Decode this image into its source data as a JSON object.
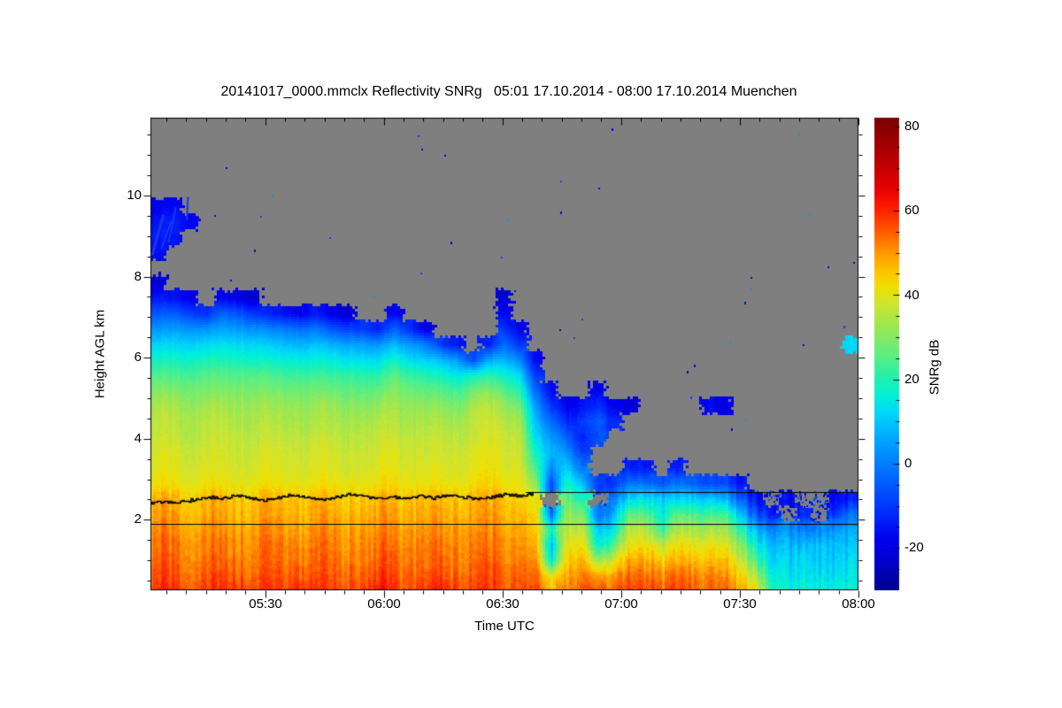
{
  "title": "20141017_0000.mmclx Reflectivity SNRg   05:01 17.10.2014 - 08:00 17.10.2014 Muenchen",
  "chart_data": {
    "type": "heatmap",
    "x_axis": {
      "label": "Time UTC",
      "start": "05:01",
      "end": "08:00",
      "span_minutes": 179,
      "ticks": [
        {
          "label": "05:30",
          "t": 29
        },
        {
          "label": "06:00",
          "t": 59
        },
        {
          "label": "06:30",
          "t": 89
        },
        {
          "label": "07:00",
          "t": 119
        },
        {
          "label": "07:30",
          "t": 149
        },
        {
          "label": "08:00",
          "t": 179
        }
      ],
      "minor_tick_minutes": 5
    },
    "y_axis": {
      "label": "Height AGL km",
      "min_km": 0.26,
      "max_km": 11.92,
      "ticks": [
        {
          "label": "2",
          "km": 2
        },
        {
          "label": "4",
          "km": 4
        },
        {
          "label": "6",
          "km": 6
        },
        {
          "label": "8",
          "km": 8
        },
        {
          "label": "10",
          "km": 10
        }
      ],
      "minor_tick_km": 0.5
    },
    "colorbar": {
      "label": "SNRg dB",
      "min_db": -30,
      "max_db": 82,
      "ticks": [
        {
          "label": "80",
          "db": 80
        },
        {
          "label": "60",
          "db": 60
        },
        {
          "label": "40",
          "db": 40
        },
        {
          "label": "20",
          "db": 20
        },
        {
          "label": "0",
          "db": 0
        },
        {
          "label": "-20",
          "db": -20
        }
      ],
      "minor_tick_db": 5,
      "colormap": [
        [
          -30,
          "#000089"
        ],
        [
          -24,
          "#0000c8"
        ],
        [
          -18,
          "#0000f0"
        ],
        [
          -10,
          "#0038ff"
        ],
        [
          -2,
          "#0070ff"
        ],
        [
          6,
          "#00a8ff"
        ],
        [
          12,
          "#00d8f8"
        ],
        [
          16,
          "#00f0d8"
        ],
        [
          20,
          "#20f0b0"
        ],
        [
          26,
          "#60ee80"
        ],
        [
          32,
          "#98e855"
        ],
        [
          38,
          "#d0e430"
        ],
        [
          42,
          "#f0e000"
        ],
        [
          46,
          "#ffc000"
        ],
        [
          50,
          "#ff9800"
        ],
        [
          54,
          "#ff6800"
        ],
        [
          58,
          "#ff3800"
        ],
        [
          62,
          "#f81400"
        ],
        [
          66,
          "#e00000"
        ],
        [
          72,
          "#b80000"
        ],
        [
          78,
          "#940000"
        ],
        [
          82,
          "#7c0000"
        ]
      ]
    },
    "nodata_color": "#7f7f7f",
    "grid": {
      "n_cols": 45,
      "level_heights_km": [
        0.24,
        0.62,
        0.99,
        1.37,
        1.75,
        2.13,
        2.5,
        2.88,
        3.26,
        3.63,
        4.01,
        4.39,
        4.76,
        5.14,
        5.52,
        5.89,
        6.27,
        6.65,
        7.02,
        7.4,
        7.78,
        8.15,
        8.53,
        8.91,
        9.28,
        9.66,
        10.04,
        10.41,
        10.79,
        11.17,
        11.54,
        11.92
      ],
      "columns": [
        [
          57,
          55,
          53,
          52,
          50,
          48,
          46,
          41,
          39,
          38,
          36,
          35,
          33,
          29,
          24,
          18,
          11,
          3,
          -6,
          -15,
          -22,
          null,
          -17,
          -14,
          -16,
          -19
        ],
        [
          58,
          55,
          53,
          52,
          50,
          48,
          46,
          41,
          39,
          38,
          36,
          35,
          33,
          29,
          24,
          18,
          12,
          4,
          -5,
          -16,
          null,
          null,
          null,
          -16,
          -13,
          -18
        ],
        [
          57,
          55,
          53,
          52,
          50,
          48,
          46,
          41,
          39,
          38,
          36,
          35,
          33,
          29,
          24,
          18,
          12,
          4,
          -8,
          -18,
          null,
          null,
          null,
          null,
          -17
        ],
        [
          57,
          55,
          53,
          51,
          50,
          48,
          46,
          41,
          39,
          38,
          36,
          35,
          33,
          29,
          25,
          19,
          12,
          3,
          -12
        ],
        [
          58,
          56,
          53,
          52,
          50,
          48,
          46,
          41,
          39,
          38,
          37,
          35,
          33,
          29,
          25,
          19,
          13,
          5,
          -4,
          -18
        ],
        [
          61,
          56,
          54,
          52,
          50,
          48,
          46,
          41,
          39,
          38,
          37,
          35,
          33,
          30,
          25,
          19,
          13,
          5,
          -5,
          -19
        ],
        [
          58,
          55,
          53,
          52,
          50,
          48,
          46,
          41,
          39,
          38,
          36,
          35,
          33,
          29,
          25,
          18,
          12,
          3,
          -10,
          -22
        ],
        [
          57,
          55,
          53,
          52,
          50,
          48,
          46,
          41,
          39,
          38,
          36,
          34,
          32,
          28,
          24,
          17,
          10,
          1,
          -14
        ],
        [
          58,
          55,
          53,
          52,
          50,
          48,
          46,
          41,
          39,
          38,
          36,
          34,
          32,
          28,
          23,
          16,
          9,
          0,
          -16
        ],
        [
          61,
          57,
          54,
          52,
          50,
          48,
          46,
          41,
          39,
          38,
          36,
          34,
          32,
          28,
          23,
          16,
          8,
          -2,
          -18
        ],
        [
          58,
          55,
          53,
          52,
          50,
          48,
          46,
          41,
          39,
          38,
          36,
          34,
          32,
          28,
          23,
          16,
          9,
          -1,
          -15
        ],
        [
          57,
          55,
          53,
          52,
          50,
          48,
          46,
          41,
          39,
          38,
          36,
          34,
          32,
          27,
          22,
          15,
          7,
          -6,
          -20
        ],
        [
          58,
          56,
          53,
          52,
          50,
          48,
          46,
          41,
          39,
          38,
          36,
          34,
          31,
          27,
          22,
          14,
          6,
          -8,
          -22
        ],
        [
          58,
          55,
          53,
          52,
          50,
          48,
          46,
          41,
          39,
          38,
          36,
          34,
          31,
          26,
          21,
          13,
          5,
          -10
        ],
        [
          61,
          57,
          54,
          52,
          50,
          48,
          46,
          41,
          39,
          38,
          36,
          34,
          31,
          26,
          20,
          12,
          3,
          -14
        ],
        [
          58,
          56,
          54,
          52,
          50,
          48,
          46,
          42,
          40,
          39,
          37,
          35,
          33,
          30,
          26,
          18,
          8,
          -4,
          -18
        ],
        [
          57,
          55,
          53,
          52,
          50,
          48,
          46,
          41,
          39,
          38,
          36,
          34,
          32,
          28,
          22,
          13,
          4,
          -12
        ],
        [
          58,
          55,
          53,
          52,
          50,
          48,
          46,
          41,
          39,
          38,
          36,
          34,
          31,
          26,
          20,
          11,
          0,
          -20
        ],
        [
          61,
          56,
          54,
          52,
          50,
          48,
          46,
          41,
          39,
          38,
          36,
          34,
          30,
          25,
          18,
          8,
          -10
        ],
        [
          58,
          55,
          53,
          52,
          50,
          48,
          46,
          41,
          39,
          38,
          36,
          33,
          29,
          23,
          15,
          4,
          -15
        ],
        [
          57,
          55,
          53,
          52,
          50,
          48,
          47,
          42,
          40,
          39,
          37,
          36,
          34,
          28,
          18,
          -8
        ],
        [
          58,
          56,
          54,
          52,
          50,
          49,
          47,
          43,
          41,
          40,
          38,
          37,
          35,
          30,
          20,
          6,
          -14
        ],
        [
          57,
          55,
          53,
          52,
          50,
          48,
          47,
          42,
          40,
          39,
          38,
          36,
          33,
          26,
          18,
          8,
          -2,
          -10,
          -17,
          -22
        ],
        [
          58,
          56,
          54,
          52,
          50,
          48,
          46,
          42,
          40,
          39,
          37,
          34,
          29,
          21,
          13,
          2,
          -10,
          -18
        ],
        [
          55,
          52,
          49,
          46,
          43,
          41,
          38,
          30,
          22,
          16,
          11,
          7,
          2,
          -4,
          -11,
          -18
        ],
        [
          47,
          40,
          14,
          8,
          18,
          -4,
          null,
          -8,
          2,
          8,
          4,
          -3,
          -10,
          -17
        ],
        [
          54,
          50,
          46,
          42,
          38,
          34,
          28,
          20,
          12,
          4,
          -4,
          -12,
          -18
        ],
        [
          56,
          52,
          47,
          42,
          36,
          28,
          18,
          8,
          -2,
          -10,
          -14,
          -10,
          -16
        ],
        [
          53,
          46,
          28,
          12,
          6,
          -6,
          null,
          -12,
          null,
          null,
          -8,
          -6,
          -13,
          -19
        ],
        [
          55,
          50,
          40,
          26,
          16,
          8,
          0,
          -10,
          null,
          null,
          null,
          -12,
          -18
        ],
        [
          60,
          56,
          50,
          44,
          38,
          28,
          14,
          0,
          -13,
          null,
          null,
          null,
          -20
        ],
        [
          56,
          53,
          47,
          41,
          34,
          24,
          12,
          -3,
          -15
        ],
        [
          54,
          50,
          44,
          34,
          20,
          14,
          9,
          -7
        ],
        [
          59,
          55,
          49,
          43,
          36,
          26,
          13,
          -1,
          -14
        ],
        [
          55,
          52,
          46,
          40,
          33,
          23,
          11,
          -5
        ],
        [
          53,
          50,
          44,
          39,
          32,
          21,
          8,
          -9,
          null,
          null,
          null,
          null,
          -18
        ],
        [
          58,
          54,
          49,
          43,
          36,
          26,
          11,
          -6,
          null,
          null,
          null,
          null,
          -18
        ],
        [
          50,
          45,
          38,
          31,
          22,
          10,
          -4,
          -16
        ],
        [
          40,
          32,
          22,
          14,
          6,
          -8,
          -18
        ],
        [
          22,
          17,
          13,
          9,
          2,
          -14
        ],
        [
          17,
          14,
          12,
          9,
          4,
          null,
          -16
        ],
        [
          16,
          13,
          11,
          7,
          -2,
          -14
        ],
        [
          15,
          12,
          10,
          8,
          0
        ],
        [
          16,
          13,
          11,
          9,
          4,
          -10,
          -18
        ],
        [
          17,
          14,
          12,
          10,
          6,
          -2,
          -14,
          null,
          null,
          null,
          null,
          null,
          null,
          null,
          null,
          null,
          12
        ]
      ]
    },
    "overlays": {
      "melting_layer_line": {
        "t_start": 0,
        "t_end": 97,
        "h_km": [
          2.42,
          2.46,
          2.43,
          2.5,
          2.58,
          2.52,
          2.6,
          2.55,
          2.48,
          2.55,
          2.62,
          2.57,
          2.5,
          2.57,
          2.63,
          2.58,
          2.52,
          2.58,
          2.54,
          2.6,
          2.55,
          2.62,
          2.57,
          2.52,
          2.58,
          2.63,
          2.6,
          2.66
        ]
      },
      "h_lines": [
        {
          "h_km": 1.9,
          "t0": 0,
          "t1": 179
        },
        {
          "h_km": 2.69,
          "t0": 95,
          "t1": 179
        }
      ],
      "high_cloud_streaks": [
        {
          "t0": 0.5,
          "h0": 8.55,
          "t1": 3.2,
          "h1": 9.5,
          "w": 3
        },
        {
          "t0": 2.8,
          "h0": 8.7,
          "t1": 5.2,
          "h1": 9.35,
          "w": 2
        },
        {
          "t0": 4.6,
          "h0": 8.85,
          "t1": 6.4,
          "h1": 9.7,
          "w": 2
        },
        {
          "t0": 9.2,
          "h0": 9.4,
          "t1": 9.5,
          "h1": 9.95,
          "w": 2
        }
      ],
      "speckle_regions": [
        {
          "t0": 2,
          "t1": 178,
          "h0": 3.1,
          "h1": 11.7,
          "count": 55,
          "seed": 11
        },
        {
          "t0": 97,
          "t1": 151,
          "h0": 1.85,
          "h1": 2.7,
          "count": 80,
          "seed": 22
        },
        {
          "t0": 151,
          "t1": 179,
          "h0": 1.72,
          "h1": 2.74,
          "count": 330,
          "seed": 33
        }
      ]
    }
  }
}
